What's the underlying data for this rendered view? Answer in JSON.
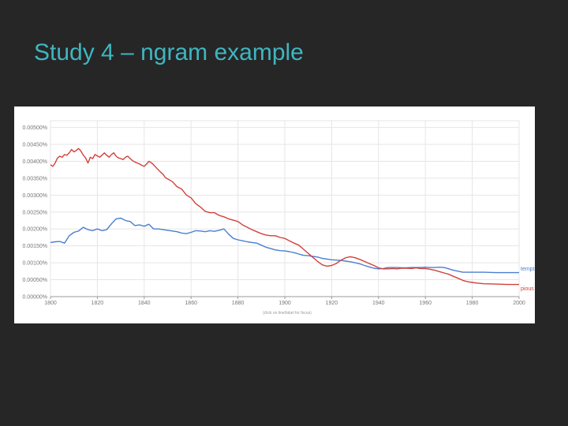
{
  "slide": {
    "title": "Study 4 – ngram example"
  },
  "chart_data": {
    "type": "line",
    "xlim": [
      1800,
      2000
    ],
    "ylim": [
      0,
      0.0052
    ],
    "x_ticks": [
      {
        "value": 1800,
        "label": "1800"
      },
      {
        "value": 1820,
        "label": "1820"
      },
      {
        "value": 1840,
        "label": "1840"
      },
      {
        "value": 1860,
        "label": "1860"
      },
      {
        "value": 1880,
        "label": "1880"
      },
      {
        "value": 1900,
        "label": "1900"
      },
      {
        "value": 1920,
        "label": "1920"
      },
      {
        "value": 1940,
        "label": "1940"
      },
      {
        "value": 1960,
        "label": "1960"
      },
      {
        "value": 1980,
        "label": "1980"
      },
      {
        "value": 2000,
        "label": "2000"
      }
    ],
    "y_ticks": [
      {
        "value": 0.005,
        "label": "0.00500%"
      },
      {
        "value": 0.0045,
        "label": "0.00450%"
      },
      {
        "value": 0.004,
        "label": "0.00400%"
      },
      {
        "value": 0.0035,
        "label": "0.00350%"
      },
      {
        "value": 0.003,
        "label": "0.00300%"
      },
      {
        "value": 0.0025,
        "label": "0.00250%"
      },
      {
        "value": 0.002,
        "label": "0.00200%"
      },
      {
        "value": 0.0015,
        "label": "0.00150%"
      },
      {
        "value": 0.001,
        "label": "0.00100%"
      },
      {
        "value": 0.0005,
        "label": "0.00050%"
      },
      {
        "value": 0,
        "label": "0.00000%"
      }
    ],
    "grid": true,
    "legend": "end-of-line",
    "footnote": "(click on line/label for focus)",
    "series": [
      {
        "name": "temptation",
        "color": "#4a7fcf",
        "points": [
          [
            1800,
            0.0016
          ],
          [
            1802,
            0.00162
          ],
          [
            1804,
            0.00163
          ],
          [
            1806,
            0.00158
          ],
          [
            1808,
            0.0018
          ],
          [
            1810,
            0.0019
          ],
          [
            1812,
            0.00194
          ],
          [
            1814,
            0.00205
          ],
          [
            1816,
            0.00198
          ],
          [
            1818,
            0.00195
          ],
          [
            1820,
            0.002
          ],
          [
            1822,
            0.00195
          ],
          [
            1824,
            0.00198
          ],
          [
            1826,
            0.00215
          ],
          [
            1828,
            0.0023
          ],
          [
            1830,
            0.00232
          ],
          [
            1832,
            0.00225
          ],
          [
            1834,
            0.00222
          ],
          [
            1836,
            0.0021
          ],
          [
            1838,
            0.00212
          ],
          [
            1840,
            0.00208
          ],
          [
            1842,
            0.00214
          ],
          [
            1844,
            0.002
          ],
          [
            1846,
            0.002
          ],
          [
            1848,
            0.00198
          ],
          [
            1850,
            0.00196
          ],
          [
            1852,
            0.00194
          ],
          [
            1854,
            0.00192
          ],
          [
            1856,
            0.00188
          ],
          [
            1858,
            0.00186
          ],
          [
            1860,
            0.0019
          ],
          [
            1862,
            0.00195
          ],
          [
            1864,
            0.00194
          ],
          [
            1866,
            0.00192
          ],
          [
            1868,
            0.00195
          ],
          [
            1870,
            0.00193
          ],
          [
            1872,
            0.00196
          ],
          [
            1874,
            0.002
          ],
          [
            1876,
            0.00185
          ],
          [
            1878,
            0.00172
          ],
          [
            1880,
            0.00168
          ],
          [
            1882,
            0.00165
          ],
          [
            1884,
            0.00162
          ],
          [
            1886,
            0.0016
          ],
          [
            1888,
            0.00158
          ],
          [
            1890,
            0.00152
          ],
          [
            1892,
            0.00146
          ],
          [
            1894,
            0.00142
          ],
          [
            1896,
            0.00138
          ],
          [
            1898,
            0.00136
          ],
          [
            1900,
            0.00135
          ],
          [
            1902,
            0.00133
          ],
          [
            1904,
            0.0013
          ],
          [
            1906,
            0.00126
          ],
          [
            1908,
            0.00122
          ],
          [
            1910,
            0.00121
          ],
          [
            1912,
            0.00119
          ],
          [
            1914,
            0.00117
          ],
          [
            1916,
            0.00113
          ],
          [
            1918,
            0.00111
          ],
          [
            1920,
            0.00109
          ],
          [
            1922,
            0.00108
          ],
          [
            1924,
            0.00107
          ],
          [
            1926,
            0.00105
          ],
          [
            1928,
            0.00103
          ],
          [
            1930,
            0.001
          ],
          [
            1932,
            0.00097
          ],
          [
            1934,
            0.00092
          ],
          [
            1936,
            0.00088
          ],
          [
            1938,
            0.00084
          ],
          [
            1940,
            0.00082
          ],
          [
            1942,
            0.00083
          ],
          [
            1944,
            0.00086
          ],
          [
            1946,
            0.00086
          ],
          [
            1948,
            0.00086
          ],
          [
            1950,
            0.00085
          ],
          [
            1952,
            0.00085
          ],
          [
            1954,
            0.00086
          ],
          [
            1956,
            0.00086
          ],
          [
            1958,
            0.00086
          ],
          [
            1960,
            0.00087
          ],
          [
            1962,
            0.00086
          ],
          [
            1964,
            0.00086
          ],
          [
            1966,
            0.00087
          ],
          [
            1968,
            0.00086
          ],
          [
            1970,
            0.00082
          ],
          [
            1972,
            0.00078
          ],
          [
            1974,
            0.00075
          ],
          [
            1976,
            0.00072
          ],
          [
            1978,
            0.00072
          ],
          [
            1980,
            0.00072
          ],
          [
            1985,
            0.00072
          ],
          [
            1990,
            0.00071
          ],
          [
            1995,
            0.00071
          ],
          [
            2000,
            0.00071
          ]
        ]
      },
      {
        "name": "pious",
        "color": "#d2413a",
        "points": [
          [
            1800,
            0.0039
          ],
          [
            1801,
            0.00385
          ],
          [
            1802,
            0.00395
          ],
          [
            1803,
            0.0041
          ],
          [
            1804,
            0.00415
          ],
          [
            1805,
            0.00412
          ],
          [
            1806,
            0.0042
          ],
          [
            1807,
            0.00418
          ],
          [
            1808,
            0.00425
          ],
          [
            1809,
            0.00435
          ],
          [
            1810,
            0.00428
          ],
          [
            1811,
            0.00432
          ],
          [
            1812,
            0.00438
          ],
          [
            1813,
            0.0043
          ],
          [
            1814,
            0.00418
          ],
          [
            1815,
            0.0041
          ],
          [
            1816,
            0.00395
          ],
          [
            1817,
            0.00412
          ],
          [
            1818,
            0.00408
          ],
          [
            1819,
            0.0042
          ],
          [
            1820,
            0.00416
          ],
          [
            1821,
            0.00412
          ],
          [
            1822,
            0.00418
          ],
          [
            1823,
            0.00425
          ],
          [
            1824,
            0.00418
          ],
          [
            1825,
            0.00412
          ],
          [
            1826,
            0.0042
          ],
          [
            1827,
            0.00425
          ],
          [
            1828,
            0.00415
          ],
          [
            1829,
            0.0041
          ],
          [
            1830,
            0.00408
          ],
          [
            1831,
            0.00405
          ],
          [
            1832,
            0.00412
          ],
          [
            1833,
            0.00415
          ],
          [
            1834,
            0.00408
          ],
          [
            1835,
            0.00402
          ],
          [
            1836,
            0.00398
          ],
          [
            1837,
            0.00395
          ],
          [
            1838,
            0.00392
          ],
          [
            1839,
            0.00388
          ],
          [
            1840,
            0.00385
          ],
          [
            1841,
            0.00392
          ],
          [
            1842,
            0.004
          ],
          [
            1843,
            0.00396
          ],
          [
            1844,
            0.0039
          ],
          [
            1845,
            0.00382
          ],
          [
            1846,
            0.00375
          ],
          [
            1847,
            0.00368
          ],
          [
            1848,
            0.00362
          ],
          [
            1849,
            0.00352
          ],
          [
            1850,
            0.00348
          ],
          [
            1852,
            0.0034
          ],
          [
            1854,
            0.00325
          ],
          [
            1856,
            0.00318
          ],
          [
            1858,
            0.003
          ],
          [
            1860,
            0.00292
          ],
          [
            1862,
            0.00275
          ],
          [
            1864,
            0.00265
          ],
          [
            1866,
            0.00252
          ],
          [
            1868,
            0.00248
          ],
          [
            1870,
            0.00248
          ],
          [
            1872,
            0.0024
          ],
          [
            1874,
            0.00236
          ],
          [
            1876,
            0.0023
          ],
          [
            1878,
            0.00226
          ],
          [
            1880,
            0.00222
          ],
          [
            1882,
            0.00212
          ],
          [
            1884,
            0.00205
          ],
          [
            1886,
            0.00198
          ],
          [
            1888,
            0.00192
          ],
          [
            1890,
            0.00186
          ],
          [
            1892,
            0.00182
          ],
          [
            1894,
            0.0018
          ],
          [
            1896,
            0.0018
          ],
          [
            1898,
            0.00175
          ],
          [
            1900,
            0.00172
          ],
          [
            1902,
            0.00165
          ],
          [
            1904,
            0.00158
          ],
          [
            1906,
            0.00152
          ],
          [
            1908,
            0.0014
          ],
          [
            1910,
            0.00128
          ],
          [
            1912,
            0.00116
          ],
          [
            1914,
            0.00104
          ],
          [
            1916,
            0.00094
          ],
          [
            1918,
            0.0009
          ],
          [
            1920,
            0.00092
          ],
          [
            1922,
            0.00098
          ],
          [
            1924,
            0.00108
          ],
          [
            1926,
            0.00115
          ],
          [
            1928,
            0.00118
          ],
          [
            1930,
            0.00115
          ],
          [
            1932,
            0.0011
          ],
          [
            1934,
            0.00104
          ],
          [
            1936,
            0.00098
          ],
          [
            1938,
            0.00092
          ],
          [
            1940,
            0.00085
          ],
          [
            1942,
            0.00082
          ],
          [
            1944,
            0.00082
          ],
          [
            1946,
            0.00083
          ],
          [
            1948,
            0.00082
          ],
          [
            1950,
            0.00084
          ],
          [
            1952,
            0.00084
          ],
          [
            1954,
            0.00083
          ],
          [
            1956,
            0.00085
          ],
          [
            1958,
            0.00083
          ],
          [
            1960,
            0.00083
          ],
          [
            1962,
            0.00081
          ],
          [
            1964,
            0.00078
          ],
          [
            1966,
            0.00074
          ],
          [
            1968,
            0.0007
          ],
          [
            1970,
            0.00066
          ],
          [
            1972,
            0.0006
          ],
          [
            1974,
            0.00054
          ],
          [
            1976,
            0.00048
          ],
          [
            1978,
            0.00044
          ],
          [
            1980,
            0.00042
          ],
          [
            1982,
            0.0004
          ],
          [
            1985,
            0.00038
          ],
          [
            1990,
            0.00037
          ],
          [
            1995,
            0.00036
          ],
          [
            2000,
            0.00036
          ]
        ]
      }
    ]
  }
}
